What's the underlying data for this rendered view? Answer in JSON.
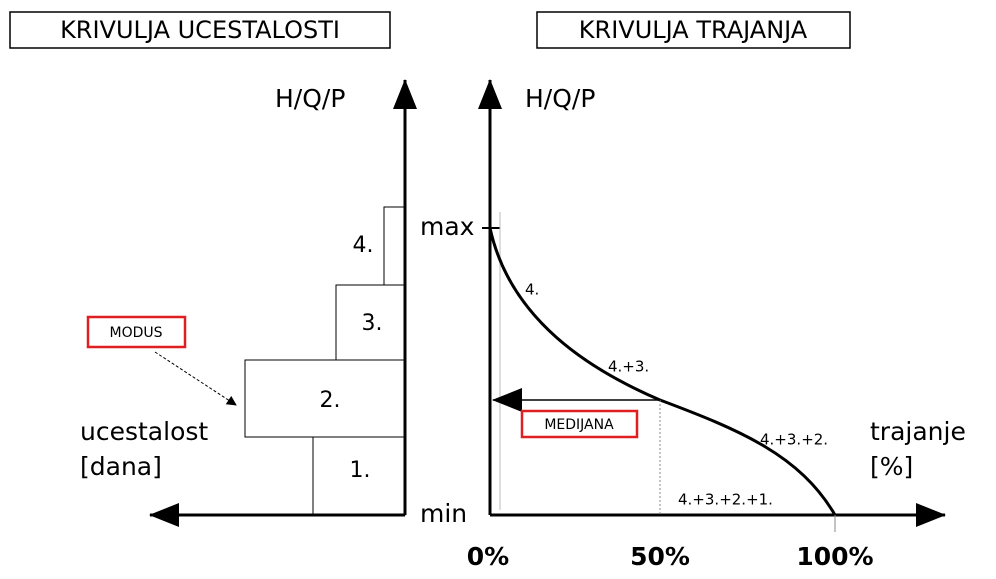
{
  "left": {
    "title": "KRIVULJA UCESTALOSTI",
    "axis_label": "H/Q/P",
    "bars": [
      "4.",
      "3.",
      "2.",
      "1."
    ],
    "modus": "MODUS",
    "x_label": [
      "ucestalost",
      "[dana]"
    ]
  },
  "right": {
    "title": "KRIVULJA TRAJANJA",
    "axis_label": "H/Q/P",
    "max": "max",
    "min": "min",
    "curve_labels": [
      "4.",
      "4.+3.",
      "4.+3.+2.",
      "4.+3.+2.+1."
    ],
    "medijana": "MEDIJANA",
    "x_label": [
      "trajanje",
      "[%]"
    ],
    "ticks": [
      "0%",
      "50%",
      "100%"
    ]
  }
}
